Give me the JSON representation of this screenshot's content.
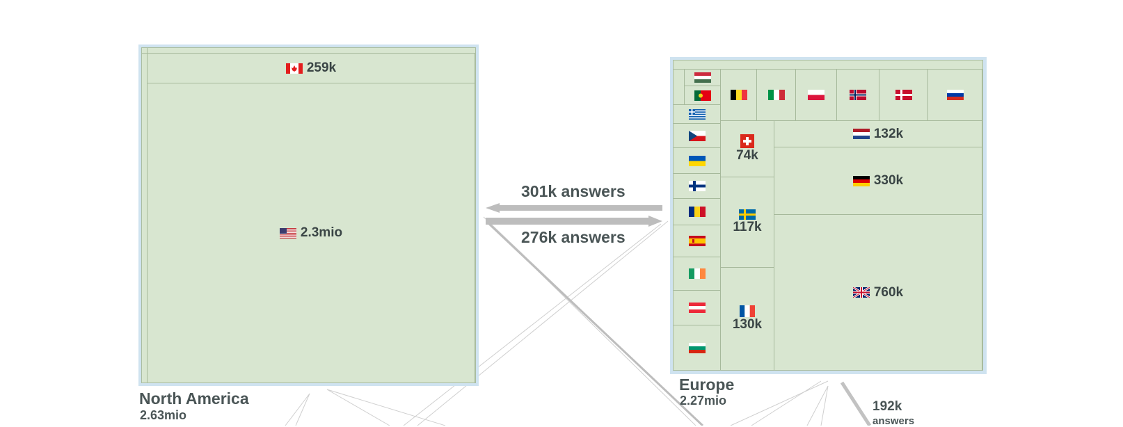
{
  "north_america": {
    "name": "North America",
    "total": "2.63mio",
    "countries": [
      {
        "name": "Canada",
        "value": "259k",
        "flag": "canada-flag"
      },
      {
        "name": "United States",
        "value": "2.3mio",
        "flag": "usa-flag"
      }
    ]
  },
  "europe": {
    "name": "Europe",
    "total": "2.27mio",
    "countries_labeled": [
      {
        "name": "Switzerland",
        "value": "74k",
        "flag": "switzerland-flag"
      },
      {
        "name": "Sweden",
        "value": "117k",
        "flag": "sweden-flag"
      },
      {
        "name": "France",
        "value": "130k",
        "flag": "france-flag"
      },
      {
        "name": "Netherlands",
        "value": "132k",
        "flag": "netherlands-flag"
      },
      {
        "name": "Germany",
        "value": "330k",
        "flag": "germany-flag"
      },
      {
        "name": "United Kingdom",
        "value": "760k",
        "flag": "uk-flag"
      }
    ],
    "countries_flag_only": [
      "hungary-flag",
      "portugal-flag",
      "greece-flag",
      "czech-flag",
      "ukraine-flag",
      "finland-flag",
      "romania-flag",
      "spain-flag",
      "ireland-flag",
      "austria-flag",
      "bulgaria-flag",
      "belgium-flag",
      "italy-flag",
      "poland-flag",
      "norway-flag",
      "denmark-flag",
      "russia-flag"
    ]
  },
  "flows": {
    "europe_to_na": "301k answers",
    "na_to_europe": "276k answers",
    "europe_out_value": "192k",
    "europe_out_unit": "answers"
  },
  "colors": {
    "treemap_fill": "#d8e6d0",
    "panel_border": "#cfe3f0",
    "arrow": "#bdbdbd",
    "text": "#3f4a4a"
  }
}
